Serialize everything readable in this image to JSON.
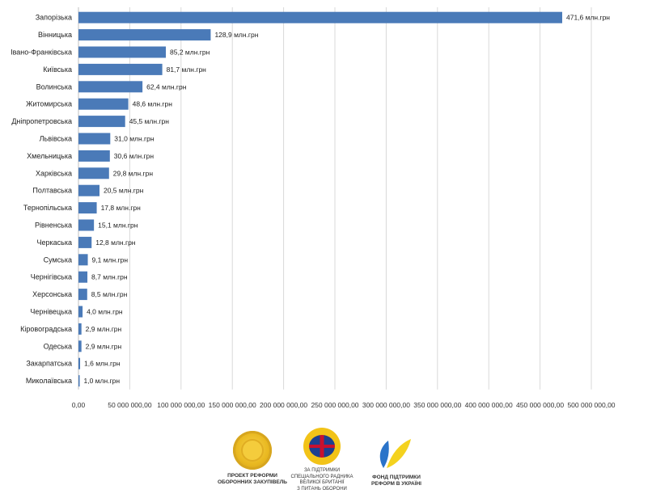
{
  "chart_data": {
    "type": "bar",
    "orientation": "horizontal",
    "categories": [
      "Запорізька",
      "Вінницька",
      "Івано-Франківська",
      "Київська",
      "Волинська",
      "Житомирська",
      "Дніпропетровська",
      "Львівська",
      "Хмельницька",
      "Харківська",
      "Полтавська",
      "Тернопільська",
      "Рівненська",
      "Черкаська",
      "Сумська",
      "Чернігівська",
      "Херсонська",
      "Чернівецька",
      "Кіровоградська",
      "Одеська",
      "Закарпатська",
      "Миколаївська"
    ],
    "values": [
      471.6,
      128.9,
      85.2,
      81.7,
      62.4,
      48.6,
      45.5,
      31.0,
      30.6,
      29.8,
      20.5,
      17.8,
      15.1,
      12.8,
      9.1,
      8.7,
      8.5,
      4.0,
      2.9,
      2.9,
      1.6,
      1.0
    ],
    "data_labels": [
      "471,6 млн.грн",
      "128,9 млн.грн",
      "85,2 млн.грн",
      "81,7 млн.грн",
      "62,4 млн.грн",
      "48,6 млн.грн",
      "45,5 млн.грн",
      "31,0 млн.грн",
      "30,6 млн.грн",
      "29,8 млн.грн",
      "20,5 млн.грн",
      "17,8 млн.грн",
      "15,1 млн.грн",
      "12,8 млн.грн",
      "9,1 млн.грн",
      "8,7 млн.грн",
      "8,5 млн.грн",
      "4,0 млн.грн",
      "2,9 млн.грн",
      "2,9 млн.грн",
      "1,6 млн.грн",
      "1,0 млн.грн"
    ],
    "value_unit": "млн.грн",
    "xlim": [
      0,
      500
    ],
    "x_ticks": [
      0,
      50,
      100,
      150,
      200,
      250,
      300,
      350,
      400,
      450,
      500
    ],
    "x_tick_labels": [
      "0,00",
      "50 000 000,00",
      "100 000 000,00",
      "150 000 000,00",
      "200 000 000,00",
      "250 000 000,00",
      "300 000 000,00",
      "350 000 000,00",
      "400 000 000,00",
      "450 000 000,00",
      "500 000 000,00"
    ],
    "grid": "vertical",
    "bar_color": "#4a7ab8",
    "title": "",
    "xlabel": "",
    "ylabel": ""
  },
  "logos": {
    "project": {
      "lines": [
        "ПРОЕКТ РЕФОРМИ",
        "ОБОРОННИХ ЗАКУПІВЕЛЬ"
      ],
      "icon": "gold-seal-icon"
    },
    "support": {
      "lines": [
        "ЗА ПІДТРИМКИ",
        "СПЕЦІАЛЬНОГО РАДНИКА",
        "ВЕЛИКОЇ БРИТАНІЇ",
        "З ПИТАНЬ ОБОРОНИ"
      ],
      "icon": "uk-emblem-icon"
    },
    "fund": {
      "lines": [
        "ФОНД ПІДТРИМКИ",
        "РЕФОРМ В УКРАЇНІ"
      ],
      "icon": "blue-yellow-leaf-icon"
    }
  },
  "colors": {
    "bar": "#4a7ab8",
    "grid": "#d9d9d9",
    "axis": "#bfbfbf",
    "leaf_blue": "#2a73c9",
    "leaf_yellow": "#f4d21f"
  }
}
